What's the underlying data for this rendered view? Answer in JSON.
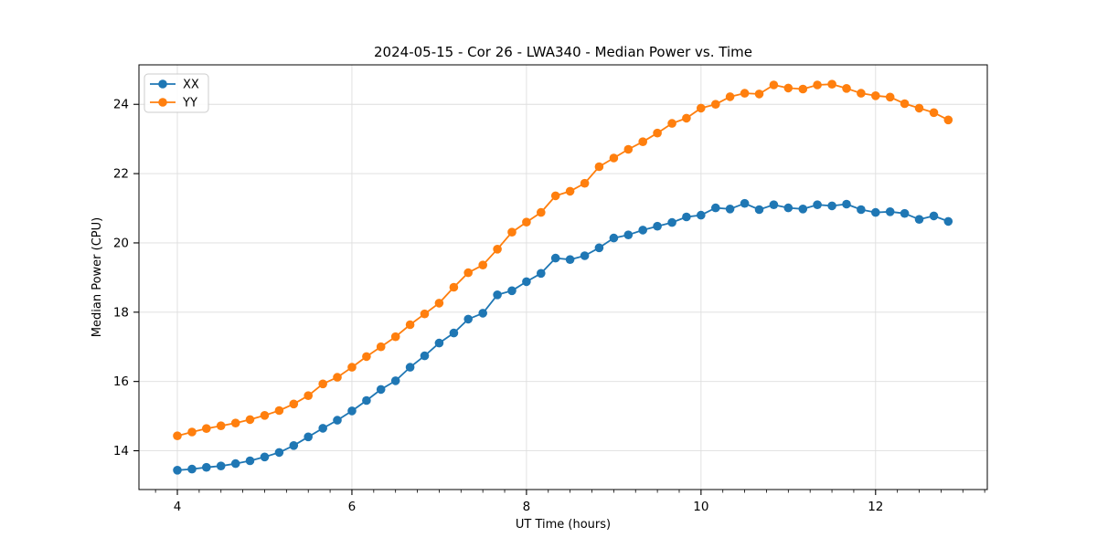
{
  "chart_data": {
    "type": "line",
    "title": "2024-05-15 - Cor 26 - LWA340 - Median Power vs. Time",
    "xlabel": "UT Time (hours)",
    "ylabel": "Median Power (CPU)",
    "xlim": [
      3.56,
      13.28
    ],
    "ylim": [
      12.88,
      25.14
    ],
    "grid": true,
    "legend_position": "upper-left",
    "x_tick_values": [
      4,
      6,
      8,
      10,
      12
    ],
    "x_tick_labels": [
      "4",
      "6",
      "8",
      "10",
      "12"
    ],
    "x_minor_tick_step": 0.25,
    "y_tick_values": [
      14,
      16,
      18,
      20,
      22,
      24
    ],
    "y_tick_labels": [
      "14",
      "16",
      "18",
      "20",
      "22",
      "24"
    ],
    "x": [
      4.0,
      4.167,
      4.333,
      4.5,
      4.667,
      4.833,
      5.0,
      5.167,
      5.333,
      5.5,
      5.667,
      5.833,
      6.0,
      6.167,
      6.333,
      6.5,
      6.667,
      6.833,
      7.0,
      7.167,
      7.333,
      7.5,
      7.667,
      7.833,
      8.0,
      8.167,
      8.333,
      8.5,
      8.667,
      8.833,
      9.0,
      9.167,
      9.333,
      9.5,
      9.667,
      9.833,
      10.0,
      10.167,
      10.333,
      10.5,
      10.667,
      10.833,
      11.0,
      11.167,
      11.333,
      11.5,
      11.667,
      11.833,
      12.0,
      12.167,
      12.333,
      12.5,
      12.667,
      12.833
    ],
    "series": [
      {
        "name": "XX",
        "color": "#1f77b4",
        "values": [
          13.44,
          13.47,
          13.52,
          13.56,
          13.63,
          13.71,
          13.82,
          13.95,
          14.15,
          14.4,
          14.65,
          14.88,
          15.15,
          15.45,
          15.77,
          16.02,
          16.41,
          16.74,
          17.11,
          17.4,
          17.8,
          17.97,
          18.5,
          18.62,
          18.88,
          19.12,
          19.56,
          19.52,
          19.63,
          19.86,
          20.14,
          20.23,
          20.37,
          20.48,
          20.59,
          20.75,
          20.8,
          21.01,
          20.98,
          21.14,
          20.96,
          21.1,
          21.01,
          20.98,
          21.1,
          21.07,
          21.12,
          20.96,
          20.88,
          20.9,
          20.85,
          20.68,
          20.78,
          20.62
        ]
      },
      {
        "name": "YY",
        "color": "#ff7f0e",
        "values": [
          14.43,
          14.54,
          14.64,
          14.72,
          14.8,
          14.9,
          15.02,
          15.16,
          15.35,
          15.59,
          15.93,
          16.12,
          16.41,
          16.72,
          17.0,
          17.29,
          17.64,
          17.95,
          18.26,
          18.72,
          19.14,
          19.36,
          19.82,
          20.31,
          20.6,
          20.88,
          21.36,
          21.49,
          21.72,
          22.2,
          22.45,
          22.7,
          22.92,
          23.17,
          23.45,
          23.6,
          23.89,
          24.0,
          24.22,
          24.32,
          24.3,
          24.56,
          24.47,
          24.44,
          24.56,
          24.58,
          24.46,
          24.32,
          24.25,
          24.21,
          24.02,
          23.89,
          23.76,
          23.55
        ]
      }
    ],
    "style": {
      "grid_color": "#dedede",
      "spine_color": "#000000",
      "legend_border_color": "#cccccc",
      "background_color": "#ffffff"
    }
  }
}
